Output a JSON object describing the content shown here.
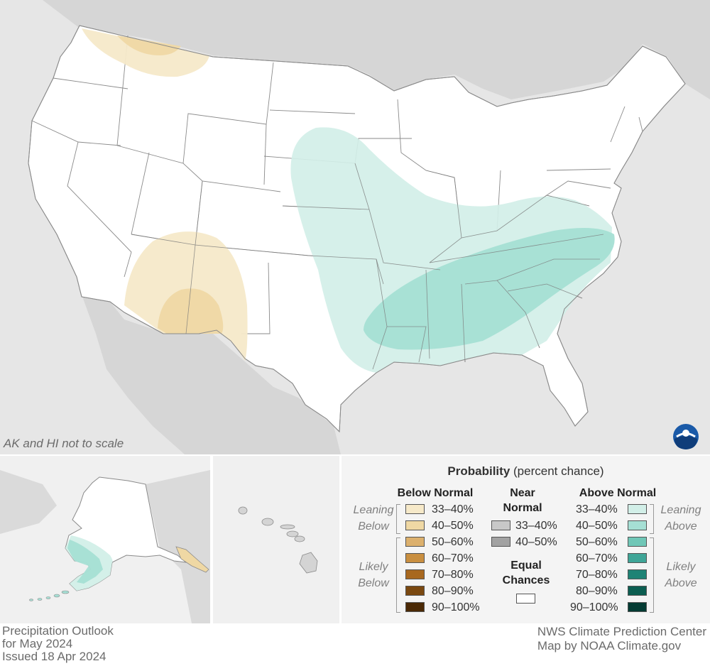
{
  "map": {
    "scale_note": "AK and HI not to scale"
  },
  "legend": {
    "title_bold": "Probability",
    "title_rest": " (percent chance)",
    "below_header": "Below Normal",
    "near_header_line1": "Near",
    "near_header_line2": "Normal",
    "above_header": "Above Normal",
    "equal_line1": "Equal",
    "equal_line2": "Chances",
    "leaning_below_line1": "Leaning",
    "leaning_below_line2": "Below",
    "likely_below_line1": "Likely",
    "likely_below_line2": "Below",
    "leaning_above_line1": "Leaning",
    "leaning_above_line2": "Above",
    "likely_above_line1": "Likely",
    "likely_above_line2": "Above",
    "below": [
      {
        "label": "33–40%",
        "color": "#f6e9c9"
      },
      {
        "label": "40–50%",
        "color": "#efd8a4"
      },
      {
        "label": "50–60%",
        "color": "#dcb06d"
      },
      {
        "label": "60–70%",
        "color": "#c98f40"
      },
      {
        "label": "70–80%",
        "color": "#a8681f"
      },
      {
        "label": "80–90%",
        "color": "#7a4810"
      },
      {
        "label": "90–100%",
        "color": "#4b2a06"
      }
    ],
    "near": [
      {
        "label": "33–40%",
        "color": "#c8c8c8"
      },
      {
        "label": "40–50%",
        "color": "#a2a2a2"
      }
    ],
    "above": [
      {
        "label": "33–40%",
        "color": "#d2efe8"
      },
      {
        "label": "40–50%",
        "color": "#a5dfd4"
      },
      {
        "label": "50–60%",
        "color": "#70c7b7"
      },
      {
        "label": "60–70%",
        "color": "#3fa597"
      },
      {
        "label": "70–80%",
        "color": "#1e8375"
      },
      {
        "label": "80–90%",
        "color": "#0c5e51"
      },
      {
        "label": "90–100%",
        "color": "#043b33"
      }
    ]
  },
  "footer": {
    "line1": "Precipitation Outlook",
    "line2": "for May 2024",
    "line3": "Issued 18 Apr 2024",
    "credit1": "NWS Climate Prediction Center",
    "credit2": "Map by NOAA Climate.gov"
  }
}
